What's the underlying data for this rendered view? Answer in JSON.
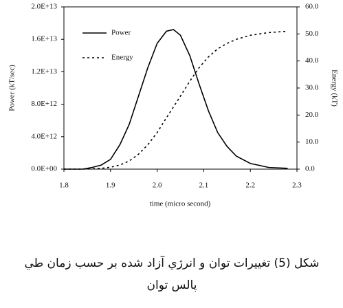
{
  "chart_data": {
    "type": "line",
    "xlabel": "time (micro second)",
    "ylabel": "Power (kT/sec)",
    "y2label": "Energy (kT)",
    "x": [
      1.8,
      1.84,
      1.86,
      1.88,
      1.9,
      1.92,
      1.94,
      1.96,
      1.98,
      2.0,
      2.02,
      2.035,
      2.05,
      2.07,
      2.09,
      2.11,
      2.13,
      2.15,
      2.17,
      2.2,
      2.24,
      2.28
    ],
    "series": [
      {
        "name": "Power",
        "color": "#000000",
        "line_style": "solid",
        "values": [
          0,
          0,
          200000000000.0,
          500000000000.0,
          1200000000000.0,
          3000000000000.0,
          5500000000000.0,
          9000000000000.0,
          12500000000000.0,
          15500000000000.0,
          17000000000000.0,
          17200000000000.0,
          16500000000000.0,
          14000000000000.0,
          10500000000000.0,
          7200000000000.0,
          4500000000000.0,
          2800000000000.0,
          1600000000000.0,
          700000000000.0,
          200000000000.0,
          100000000000.0
        ]
      },
      {
        "name": "Energy",
        "color": "#000000",
        "line_style": "dashed",
        "axis": "y2",
        "values": [
          0,
          0,
          0.1,
          0.3,
          0.7,
          1.5,
          3,
          5.5,
          9,
          13.5,
          19,
          23,
          27,
          32.5,
          37.5,
          41.5,
          44.5,
          46.5,
          48,
          49.5,
          50.5,
          51
        ]
      }
    ],
    "xlim": [
      1.8,
      2.3
    ],
    "xticks": [
      1.8,
      1.9,
      {
        "value": 2,
        "label": "2.0"
      },
      2.1,
      2.2,
      2.3
    ],
    "ylim": [
      0,
      20000000000000.0
    ],
    "yticks": [
      {
        "value": 0,
        "label": "0.0E+00"
      },
      {
        "value": 4000000000000.0,
        "label": "4.0E+12"
      },
      {
        "value": 8000000000000.0,
        "label": "8.0E+12"
      },
      {
        "value": 12000000000000.0,
        "label": "1.2E+13"
      },
      {
        "value": 16000000000000.0,
        "label": "1.6E+13"
      },
      {
        "value": 20000000000000.0,
        "label": "2.0E+13"
      }
    ],
    "y2lim": [
      0,
      60
    ],
    "y2ticks": [
      {
        "value": 0,
        "label": "0.0"
      },
      {
        "value": 10,
        "label": "10.0"
      },
      {
        "value": 20,
        "label": "20.0"
      },
      {
        "value": 30,
        "label": "30.0"
      },
      {
        "value": 40,
        "label": "40.0"
      },
      {
        "value": 50,
        "label": "50.0"
      },
      {
        "value": 60,
        "label": "60.0"
      }
    ],
    "grid": false,
    "legend": "upper left"
  },
  "caption_lines": [
    "شكل (5) تغييرات توان و انرژي آزاد شده بر حسب زمان طي",
    "پالس توان"
  ]
}
